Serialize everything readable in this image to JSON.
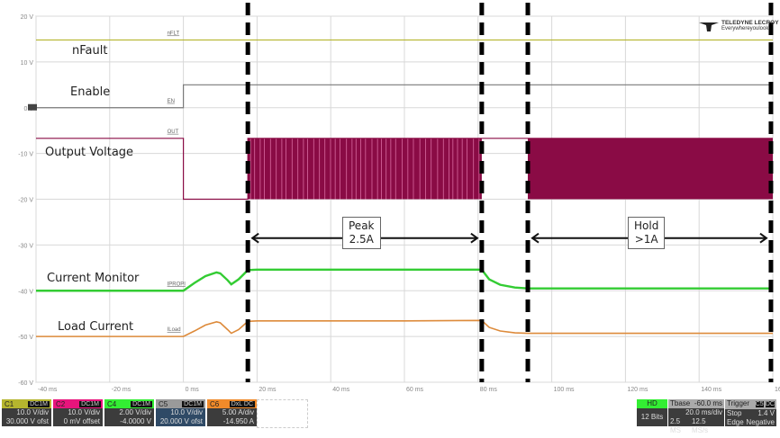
{
  "chart_data": {
    "type": "line",
    "title": "",
    "x_unit": "ms",
    "y_unit": "V",
    "xlim": [
      -40,
      160
    ],
    "ylim": [
      -60,
      20
    ],
    "grid": true,
    "x_ticks": [
      "-40 ms",
      "-20 ms",
      "0 ms",
      "20 ms",
      "40 ms",
      "60 ms",
      "80 ms",
      "100 ms",
      "120 ms",
      "140 ms",
      "160 ms"
    ],
    "x_tick_values": [
      -40,
      -20,
      0,
      20,
      40,
      60,
      80,
      100,
      120,
      140,
      160
    ],
    "y_ticks": [
      "20 V",
      "10 V",
      "0 V",
      "-10 V",
      "-20 V",
      "-30 V",
      "-40 V",
      "-50 V",
      "-60 V"
    ],
    "y_tick_values": [
      20,
      10,
      0,
      -10,
      -20,
      -30,
      -40,
      -50,
      -60
    ],
    "series": [
      {
        "name": "nFLT",
        "color": "#b5b52e",
        "x": [
          -40,
          160
        ],
        "y": [
          14.8,
          14.8
        ]
      },
      {
        "name": "EN",
        "color": "#7a7a7a",
        "x": [
          -40,
          0,
          0,
          160
        ],
        "y": [
          0,
          0,
          5,
          5
        ]
      },
      {
        "name": "OUT",
        "color": "#8a0b45",
        "x": [
          -40,
          0,
          0,
          17.5,
          17.5,
          81,
          81,
          93.5,
          93.5,
          160
        ],
        "y": [
          -6.7,
          -6.7,
          -20,
          -20,
          -6.7,
          -6.7,
          -6.7,
          -6.7,
          -6.7,
          -6.7
        ]
      },
      {
        "name": "IPROPI",
        "color": "#33cc33",
        "x": [
          -40,
          0,
          3,
          6,
          9,
          10,
          12,
          13,
          15,
          17.5,
          20,
          40,
          60,
          81,
          83,
          86,
          90,
          93.5,
          100,
          160
        ],
        "y": [
          -40,
          -40,
          -38.3,
          -36.8,
          -36,
          -36.2,
          -37.7,
          -38.6,
          -37.5,
          -35.5,
          -35.4,
          -35.4,
          -35.4,
          -35.4,
          -37.5,
          -38.7,
          -39.3,
          -39.5,
          -39.5,
          -39.5
        ]
      },
      {
        "name": "ILoad",
        "color": "#dd8a3a",
        "x": [
          -40,
          0,
          3,
          6,
          9,
          10,
          12,
          13,
          15,
          17.5,
          20,
          40,
          60,
          81,
          83,
          86,
          90,
          93.5,
          100,
          160
        ],
        "y": [
          -50,
          -50,
          -48.8,
          -47.5,
          -46.8,
          -47,
          -48.5,
          -49.3,
          -48.5,
          -46.7,
          -46.6,
          -46.6,
          -46.6,
          -46.5,
          -48,
          -48.8,
          -49.2,
          -49.3,
          -49.3,
          -49.3
        ]
      }
    ],
    "pwm_regions": [
      {
        "series": "OUT",
        "start": 17.5,
        "end": 81,
        "high": -6.7,
        "low": -20,
        "pattern": "sparse"
      },
      {
        "series": "OUT",
        "start": 93.5,
        "end": 160,
        "high": -6.7,
        "low": -20,
        "pattern": "dense"
      }
    ],
    "markers_ms": [
      17.5,
      81,
      93.5,
      159.5
    ]
  },
  "annotations": {
    "nfault": "nFault",
    "enable": "Enable",
    "output_voltage": "Output Voltage",
    "current_monitor": "Current Monitor",
    "load_current": "Load Current",
    "peak": [
      "Peak",
      "2.5A"
    ],
    "hold": [
      "Hold",
      ">1A"
    ]
  },
  "logo": {
    "brand": "TELEDYNE LECROY",
    "tagline": "Everywhereyoulook"
  },
  "channels": [
    {
      "name": "C1",
      "coupling": "DC1M",
      "color": "#b5b52e",
      "scale": "10.0 V/div",
      "offset": "30.000 V ofst"
    },
    {
      "name": "C2",
      "coupling": "DC1M",
      "color": "#e8147c",
      "scale": "10.0 V/div",
      "offset": "0 mV offset"
    },
    {
      "name": "C4",
      "coupling": "DC1M",
      "color": "#33ee33",
      "scale": "2.00 V/div",
      "offset": "-4.0000 V"
    },
    {
      "name": "C5",
      "coupling": "DC1M",
      "color": "#9a9a9a",
      "scale": "10.0 V/div",
      "offset": "20.000 V ofst"
    },
    {
      "name": "C6",
      "coupling": "DxL DC",
      "color": "#f08a2a",
      "scale": "5.00 A/div",
      "offset": "-14.950 A"
    }
  ],
  "acquisition": {
    "mode": "HD",
    "bits": "12 Bits",
    "tbase_label": "Tbase",
    "tbase": "-60.0 ms",
    "timediv": "20.0 ms/div",
    "samples": "2.5 MS",
    "rate": "12.5 MS/s",
    "trigger_label": "Trigger",
    "trigger_src": "C5",
    "trigger_coupling": "DC",
    "trigger_mode": "Stop",
    "trigger_level": "1.4 V",
    "trigger_type": "Edge",
    "trigger_slope": "Negative"
  }
}
